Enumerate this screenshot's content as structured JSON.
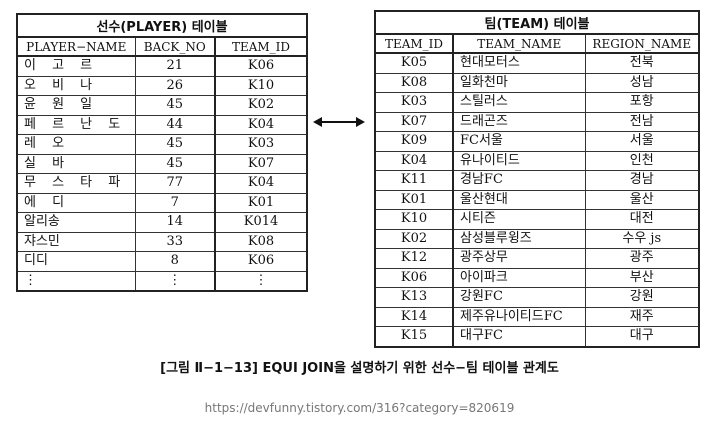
{
  "player_table": {
    "title": "선수(PLAYER) 테이블",
    "columns": [
      "PLAYER−NAME",
      "BACK_NO",
      "TEAM_ID"
    ],
    "rows": [
      [
        "이 고 르",
        "21",
        "K06"
      ],
      [
        "오 비 나",
        "26",
        "K10"
      ],
      [
        "윤 원 일",
        "45",
        "K02"
      ],
      [
        "페 르 난 도",
        "44",
        "K04"
      ],
      [
        "레 오",
        "45",
        "K03"
      ],
      [
        "실 바",
        "45",
        "K07"
      ],
      [
        "무 스 타 파",
        "77",
        "K04"
      ],
      [
        "에 디",
        "7",
        "K01"
      ],
      [
        "알리송",
        "14",
        "K014"
      ],
      [
        "쟈스민",
        "33",
        "K08"
      ],
      [
        "디디",
        "8",
        "K06"
      ],
      [
        "⋮",
        "⋮",
        "⋮"
      ]
    ]
  },
  "team_table": {
    "title": "팀(TEAM) 테이블",
    "columns": [
      "TEAM_ID",
      "TEAM_NAME",
      "REGION_NAME"
    ],
    "rows": [
      [
        "K05",
        "현대모터스",
        "전북"
      ],
      [
        "K08",
        "일화천마",
        "성남"
      ],
      [
        "K03",
        "스틸러스",
        "포항"
      ],
      [
        "K07",
        "드래곤즈",
        "전남"
      ],
      [
        "K09",
        "FC서울",
        "서울"
      ],
      [
        "K04",
        "유나이티드",
        "인천"
      ],
      [
        "K11",
        "경남FC",
        "경남"
      ],
      [
        "K01",
        "울산현대",
        "울산"
      ],
      [
        "K10",
        "시티즌",
        "대전"
      ],
      [
        "K02",
        "삼성블루윙즈",
        "수우 js"
      ],
      [
        "K12",
        "광주상무",
        "광주"
      ],
      [
        "K06",
        "아이파크",
        "부산"
      ],
      [
        "K13",
        "강원FC",
        "강원"
      ],
      [
        "K14",
        "제주유나이티드FC",
        "재주"
      ],
      [
        "K15",
        "대구FC",
        "대구"
      ]
    ]
  },
  "caption": "[그림 Ⅱ−1−13] EQUI JOIN을 설명하기 위한 선수−팀 테이블 관계도",
  "source": "https://devfunny.tistory.com/316?category=820619",
  "colors": {
    "border": "#222222",
    "text": "#111111",
    "source_text": "#777777"
  },
  "icons": {
    "arrow": "double-headed-arrow"
  }
}
